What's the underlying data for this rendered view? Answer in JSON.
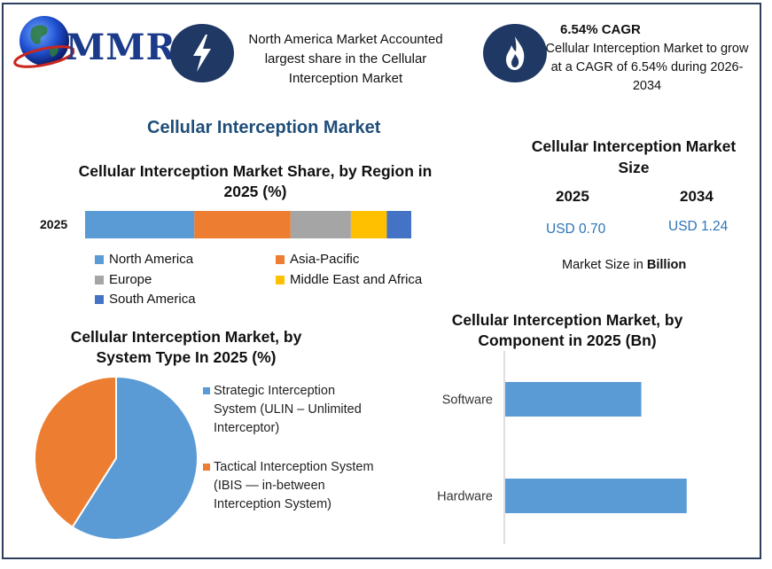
{
  "header": {
    "logo_text": "MMR",
    "highlight1": {
      "text": "North America Market Accounted largest share in the Cellular Interception Market",
      "icon": "lightning-icon"
    },
    "highlight2": {
      "title": "6.54% CAGR",
      "text": "Cellular Interception Market to grow at a CAGR of 6.54% during 2026-2034",
      "icon": "flame-icon"
    }
  },
  "main_title": "Cellular Interception Market",
  "size_panel": {
    "title": "Cellular Interception Market Size",
    "year1": "2025",
    "value1": "USD 0.70",
    "year2": "2034",
    "value2": "USD 1.24",
    "note_prefix": "Market Size in ",
    "note_bold": "Billion"
  },
  "colors": {
    "north_america": "#5b9bd5",
    "asia_pacific": "#ed7d31",
    "europe": "#a5a5a5",
    "mea": "#ffc000",
    "south_america": "#4472c4",
    "value_text": "#2e75b6",
    "title_blue": "#1f4e79"
  },
  "chart_data": [
    {
      "type": "bar",
      "stacked": true,
      "orientation": "horizontal",
      "title": "Cellular Interception Market Share, by Region in 2025 (%)",
      "categories": [
        "2025"
      ],
      "series": [
        {
          "name": "North America",
          "values": [
            33.5
          ]
        },
        {
          "name": "Asia-Pacific",
          "values": [
            29.5
          ]
        },
        {
          "name": "Europe",
          "values": [
            18.5
          ]
        },
        {
          "name": "Middle East and Africa",
          "values": [
            11
          ]
        },
        {
          "name": "South America",
          "values": [
            7.5
          ]
        }
      ],
      "xlim": [
        0,
        100
      ],
      "legend": "bottom"
    },
    {
      "type": "pie",
      "title": "Cellular Interception Market, by System Type In 2025 (%)",
      "labels": [
        "Strategic Interception System (ULIN – Unlimited Interceptor)",
        "Tactical Interception System (IBIS — in-between Interception System)"
      ],
      "values": [
        59,
        41
      ],
      "legend": "right"
    },
    {
      "type": "bar",
      "orientation": "horizontal",
      "title": "Cellular Interception Market, by Component in 2025 (Bn)",
      "categories": [
        "Software",
        "Hardware"
      ],
      "values": [
        0.3,
        0.4
      ],
      "xlim": [
        0,
        0.42
      ]
    }
  ]
}
